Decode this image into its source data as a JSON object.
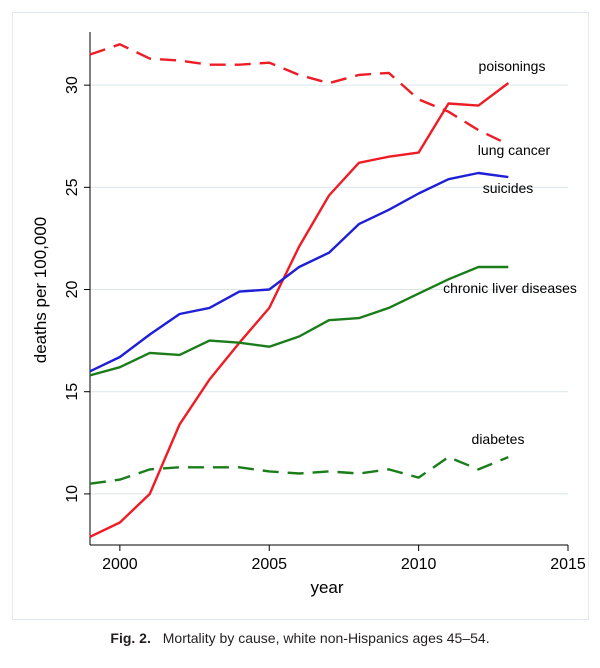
{
  "chart_data": {
    "type": "line",
    "title": "",
    "xlabel": "year",
    "ylabel": "deaths per 100,000",
    "xlim": [
      1999,
      2015
    ],
    "ylim": [
      7.5,
      32.6
    ],
    "xticks": [
      2000,
      2005,
      2010,
      2015
    ],
    "yticks": [
      10,
      15,
      20,
      25,
      30
    ],
    "grid": "horizontal",
    "legend": "inline labels at line ends",
    "x": [
      1999,
      2000,
      2001,
      2002,
      2003,
      2004,
      2005,
      2006,
      2007,
      2008,
      2009,
      2010,
      2011,
      2012,
      2013
    ],
    "series": [
      {
        "name": "poisonings",
        "color": "#ee1c25",
        "dash": "solid",
        "values": [
          7.9,
          8.6,
          10.0,
          13.4,
          15.6,
          17.4,
          19.1,
          22.1,
          24.6,
          26.2,
          26.5,
          26.7,
          29.1,
          29.0,
          30.1
        ]
      },
      {
        "name": "lung cancer",
        "color": "#ee1c25",
        "dash": "dashed",
        "values": [
          31.5,
          32.0,
          31.3,
          31.2,
          31.0,
          31.0,
          31.1,
          30.5,
          30.1,
          30.5,
          30.6,
          29.3,
          28.7,
          27.8,
          27.1
        ]
      },
      {
        "name": "suicides",
        "color": "#1f1fd6",
        "dash": "solid",
        "values": [
          16.0,
          16.7,
          17.8,
          18.8,
          19.1,
          19.9,
          20.0,
          21.1,
          21.8,
          23.2,
          23.9,
          24.7,
          25.4,
          25.7,
          25.5
        ]
      },
      {
        "name": "chronic liver diseases",
        "color": "#1a7d1a",
        "dash": "solid",
        "values": [
          15.8,
          16.2,
          16.9,
          16.8,
          17.5,
          17.4,
          17.2,
          17.7,
          18.5,
          18.6,
          19.1,
          19.8,
          20.5,
          21.1,
          21.1
        ]
      },
      {
        "name": "diabetes",
        "color": "#1a7d1a",
        "dash": "dashed",
        "values": [
          10.5,
          10.7,
          11.2,
          11.3,
          11.3,
          11.3,
          11.1,
          11.0,
          11.1,
          11.0,
          11.2,
          10.8,
          11.8,
          11.2,
          11.8
        ]
      }
    ],
    "annotations": [
      "poisonings",
      "lung cancer",
      "suicides",
      "chronic liver diseases",
      "diabetes"
    ]
  },
  "caption": {
    "label": "Fig. 2.",
    "text": "Mortality by cause, white non-Hispanics ages 45–54."
  }
}
